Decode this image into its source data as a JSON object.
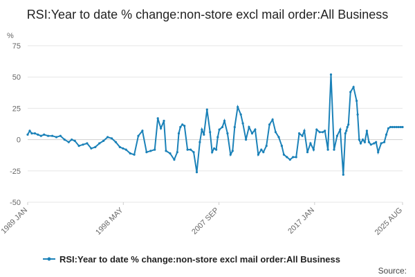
{
  "chart_data": {
    "type": "line",
    "title": "RSI:Year to date % change:non-store excl mail order:All Business",
    "ylabel": "%",
    "xlabel": "",
    "ylim": [
      -50,
      75
    ],
    "y_ticks": [
      "75",
      "50",
      "25",
      "0",
      "-25",
      "-50"
    ],
    "x_ticks": [
      "1989 JAN",
      "1998 MAY",
      "2007 SEP",
      "2017 JAN",
      "2025 AUG"
    ],
    "x_tick_dates": [
      1989.0,
      1998.333,
      2007.667,
      2017.0,
      2025.583
    ],
    "x_range": [
      1989.0,
      2025.583
    ],
    "grid": true,
    "legend_position": "bottom",
    "color": "#1a81b8",
    "series": [
      {
        "name": "RSI:Year to date % change:non-store excl mail order:All Business",
        "x": [
          1989.0,
          1989.2,
          1989.4,
          1989.7,
          1990.0,
          1990.3,
          1990.6,
          1991.0,
          1991.4,
          1991.8,
          1992.2,
          1992.6,
          1993.0,
          1993.3,
          1993.6,
          1994.0,
          1994.4,
          1994.8,
          1995.2,
          1995.6,
          1996.0,
          1996.4,
          1996.8,
          1997.2,
          1997.6,
          1998.0,
          1998.3,
          1998.6,
          1999.0,
          1999.4,
          1999.8,
          2000.2,
          2000.6,
          2001.0,
          2001.4,
          2001.7,
          2002.0,
          2002.3,
          2002.5,
          2002.9,
          2003.3,
          2003.6,
          2003.75,
          2003.9,
          2004.1,
          2004.3,
          2004.6,
          2004.9,
          2005.2,
          2005.5,
          2005.8,
          2006.0,
          2006.2,
          2006.5,
          2006.8,
          2007.0,
          2007.2,
          2007.4,
          2007.55,
          2007.7,
          2008.0,
          2008.2,
          2008.5,
          2008.8,
          2009.0,
          2009.2,
          2009.5,
          2009.8,
          2010.0,
          2010.3,
          2010.6,
          2010.9,
          2011.2,
          2011.5,
          2011.8,
          2012.0,
          2012.3,
          2012.6,
          2012.9,
          2013.2,
          2013.5,
          2013.8,
          2014.0,
          2014.3,
          2014.6,
          2014.9,
          2015.2,
          2015.5,
          2015.8,
          2016.0,
          2016.3,
          2016.6,
          2016.9,
          2017.2,
          2017.5,
          2017.8,
          2018.0,
          2018.3,
          2018.6,
          2018.9,
          2019.2,
          2019.5,
          2019.8,
          2020.0,
          2020.1,
          2020.2,
          2020.3,
          2020.5,
          2020.8,
          2021.1,
          2021.2,
          2021.35,
          2021.5,
          2021.7,
          2021.9,
          2022.1,
          2022.3,
          2022.5,
          2022.8,
          2023.0,
          2023.2,
          2023.5,
          2023.8,
          2024.0,
          2024.2,
          2024.4,
          2024.6,
          2024.8,
          2025.0,
          2025.2,
          2025.4,
          2025.583
        ],
        "values": [
          4,
          7,
          5,
          5,
          4,
          3,
          4,
          3,
          3,
          2,
          3,
          0,
          -2,
          0,
          -1,
          -5,
          -4,
          -3,
          -7,
          -6,
          -3,
          -1,
          2,
          1,
          -2,
          -6,
          -7,
          -8,
          -11,
          -12,
          3,
          7,
          -10,
          -9,
          -8,
          17,
          9,
          15,
          -9,
          -11,
          -16,
          -10,
          5,
          10,
          12,
          11,
          -8,
          -8,
          -10,
          -26,
          -2,
          8,
          4,
          24,
          6,
          -10,
          -7,
          -8,
          2,
          8,
          10,
          15,
          5,
          -12,
          -9,
          10,
          26,
          20,
          13,
          0,
          10,
          5,
          8,
          -12,
          -8,
          -10,
          -5,
          12,
          16,
          6,
          2,
          -5,
          -12,
          -14,
          -16,
          -14,
          -14,
          5,
          3,
          7,
          -10,
          -3,
          -8,
          8,
          6,
          6,
          7,
          -8,
          52,
          -8,
          3,
          8,
          -28,
          5,
          7,
          10,
          12,
          38,
          42,
          31,
          20,
          0,
          -3,
          0,
          -2,
          7,
          -2,
          -4,
          -3,
          -2,
          -10,
          -3,
          -2,
          4,
          9,
          10,
          10,
          10,
          10,
          10,
          10,
          10
        ],
        "color": "#1a81b8"
      }
    ],
    "source_label": "Source:"
  }
}
